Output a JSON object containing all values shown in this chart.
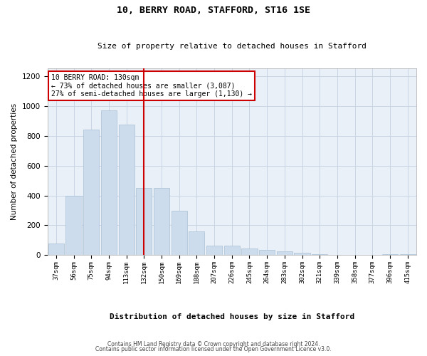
{
  "title": "10, BERRY ROAD, STAFFORD, ST16 1SE",
  "subtitle": "Size of property relative to detached houses in Stafford",
  "xlabel": "Distribution of detached houses by size in Stafford",
  "ylabel": "Number of detached properties",
  "categories": [
    "37sqm",
    "56sqm",
    "75sqm",
    "94sqm",
    "113sqm",
    "132sqm",
    "150sqm",
    "169sqm",
    "188sqm",
    "207sqm",
    "226sqm",
    "245sqm",
    "264sqm",
    "283sqm",
    "302sqm",
    "321sqm",
    "339sqm",
    "358sqm",
    "377sqm",
    "396sqm",
    "415sqm"
  ],
  "values": [
    80,
    400,
    840,
    970,
    875,
    450,
    450,
    300,
    160,
    65,
    65,
    45,
    35,
    25,
    15,
    5,
    0,
    0,
    0,
    5,
    5
  ],
  "bar_color": "#ccdcec",
  "bar_edge_color": "#a8c0d4",
  "vline_index": 5,
  "vline_color": "#cc0000",
  "annotation_text": "10 BERRY ROAD: 130sqm\n← 73% of detached houses are smaller (3,087)\n27% of semi-detached houses are larger (1,130) →",
  "annotation_box_color": "#ffffff",
  "annotation_box_edge": "#cc0000",
  "grid_color": "#c8d4e4",
  "bg_color": "#eaf0f8",
  "footer1": "Contains HM Land Registry data © Crown copyright and database right 2024.",
  "footer2": "Contains public sector information licensed under the Open Government Licence v3.0.",
  "ylim": [
    0,
    1250
  ],
  "yticks": [
    0,
    200,
    400,
    600,
    800,
    1000,
    1200
  ]
}
